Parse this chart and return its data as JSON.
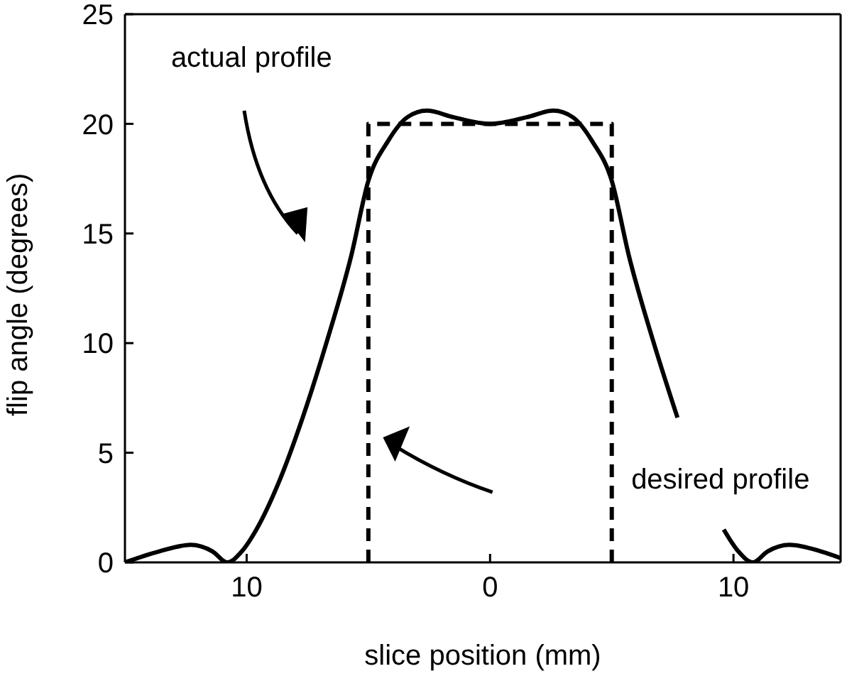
{
  "chart_data": {
    "type": "line",
    "xlabel": "slice position (mm)",
    "ylabel": "flip angle (degrees)",
    "xlim": [
      -15,
      14.4
    ],
    "ylim": [
      0,
      25
    ],
    "xticks": [
      {
        "value": -10,
        "label": "10"
      },
      0,
      {
        "value": 10,
        "label": "10"
      }
    ],
    "yticks": [
      0,
      5,
      10,
      15,
      20,
      25
    ],
    "marker": "none",
    "annotations": [
      "actual profile",
      "desired profile"
    ],
    "series": [
      {
        "color": "#000000",
        "line_style": "solid",
        "x": [
          -15,
          -13.6,
          -12.3,
          -11.4,
          -10.8,
          -10.2,
          -9.6,
          -8.7,
          -7.7,
          -6.7,
          -5.7,
          -5,
          -4.2,
          -3.4,
          -2.6,
          -1.5,
          0,
          1.5,
          2.6,
          3.4,
          4.2,
          5,
          5.7,
          6.7,
          7.7,
          8.7,
          9.6,
          10.2,
          10.8,
          11.4,
          12.3,
          13.6,
          14.4
        ],
        "values": [
          0,
          0.5,
          0.8,
          0.5,
          0,
          0.5,
          1.5,
          3.6,
          6.6,
          10.1,
          14,
          17.4,
          19.2,
          20.3,
          20.6,
          20.3,
          20,
          20.3,
          20.6,
          20.3,
          19.2,
          17.4,
          14,
          10.1,
          6.6,
          null,
          1.5,
          0.5,
          0,
          0.5,
          0.8,
          0.5,
          0.2
        ]
      },
      {
        "color": "#000000",
        "line_style": "dashed",
        "x": [
          -5,
          -5,
          5,
          5
        ],
        "values": [
          0,
          20,
          20,
          0
        ]
      }
    ]
  }
}
